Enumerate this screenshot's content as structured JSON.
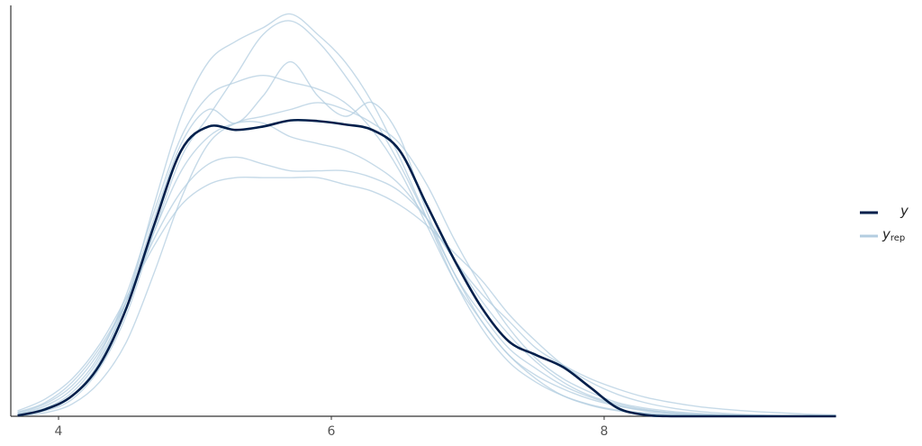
{
  "chart_data": {
    "type": "line",
    "x": [
      3.7,
      3.9,
      4.1,
      4.3,
      4.5,
      4.7,
      4.9,
      5.1,
      5.3,
      5.5,
      5.7,
      5.9,
      6.1,
      6.3,
      6.5,
      6.7,
      6.9,
      7.1,
      7.3,
      7.5,
      7.7,
      7.9,
      8.1,
      8.3,
      8.5,
      8.7,
      8.9,
      9.1,
      9.3,
      9.5,
      9.7
    ],
    "series": [
      {
        "name": "y",
        "color": "#011f4b",
        "values": [
          0.001,
          0.01,
          0.03,
          0.075,
          0.16,
          0.28,
          0.39,
          0.425,
          0.42,
          0.425,
          0.434,
          0.433,
          0.428,
          0.42,
          0.39,
          0.31,
          0.23,
          0.16,
          0.11,
          0.09,
          0.072,
          0.042,
          0.012,
          0.002,
          0,
          0,
          0,
          0,
          0,
          0,
          0
        ]
      },
      {
        "name": "y",
        "subscript": "rep",
        "color": "#b3cde0",
        "draws": [
          [
            0.004,
            0.015,
            0.04,
            0.09,
            0.18,
            0.3,
            0.41,
            0.47,
            0.49,
            0.5,
            0.49,
            0.48,
            0.46,
            0.42,
            0.36,
            0.28,
            0.2,
            0.14,
            0.09,
            0.06,
            0.04,
            0.025,
            0.015,
            0.008,
            0.004,
            0.002,
            0.001,
            0,
            0,
            0,
            0
          ],
          [
            0.006,
            0.02,
            0.05,
            0.1,
            0.17,
            0.26,
            0.33,
            0.37,
            0.38,
            0.37,
            0.36,
            0.36,
            0.36,
            0.35,
            0.33,
            0.29,
            0.23,
            0.17,
            0.12,
            0.08,
            0.05,
            0.03,
            0.018,
            0.01,
            0.005,
            0.003,
            0.002,
            0.001,
            0,
            0,
            0
          ],
          [
            0.002,
            0.008,
            0.025,
            0.07,
            0.15,
            0.27,
            0.38,
            0.44,
            0.5,
            0.56,
            0.58,
            0.55,
            0.5,
            0.44,
            0.37,
            0.29,
            0.21,
            0.14,
            0.09,
            0.055,
            0.03,
            0.016,
            0.008,
            0.004,
            0.002,
            0.001,
            0,
            0,
            0,
            0,
            0
          ],
          [
            0.001,
            0.005,
            0.018,
            0.05,
            0.11,
            0.21,
            0.32,
            0.4,
            0.43,
            0.44,
            0.45,
            0.46,
            0.45,
            0.43,
            0.4,
            0.34,
            0.26,
            0.19,
            0.13,
            0.085,
            0.055,
            0.035,
            0.02,
            0.012,
            0.007,
            0.004,
            0.002,
            0.001,
            0.001,
            0,
            0
          ],
          [
            0.003,
            0.012,
            0.035,
            0.085,
            0.17,
            0.29,
            0.4,
            0.45,
            0.43,
            0.47,
            0.52,
            0.47,
            0.44,
            0.46,
            0.41,
            0.3,
            0.21,
            0.15,
            0.1,
            0.07,
            0.045,
            0.028,
            0.016,
            0.009,
            0.005,
            0.002,
            0.001,
            0,
            0,
            0,
            0
          ],
          [
            0.005,
            0.018,
            0.045,
            0.095,
            0.17,
            0.27,
            0.36,
            0.41,
            0.43,
            0.43,
            0.41,
            0.4,
            0.39,
            0.37,
            0.34,
            0.29,
            0.23,
            0.18,
            0.14,
            0.1,
            0.075,
            0.055,
            0.04,
            0.028,
            0.02,
            0.014,
            0.01,
            0.007,
            0.005,
            0.003,
            0.002
          ],
          [
            0.002,
            0.01,
            0.03,
            0.08,
            0.17,
            0.31,
            0.44,
            0.52,
            0.55,
            0.57,
            0.59,
            0.56,
            0.52,
            0.46,
            0.38,
            0.29,
            0.2,
            0.13,
            0.08,
            0.05,
            0.03,
            0.017,
            0.009,
            0.005,
            0.002,
            0.001,
            0,
            0,
            0,
            0,
            0
          ],
          [
            0.008,
            0.025,
            0.055,
            0.105,
            0.175,
            0.25,
            0.31,
            0.34,
            0.35,
            0.35,
            0.35,
            0.35,
            0.34,
            0.33,
            0.31,
            0.28,
            0.24,
            0.2,
            0.15,
            0.11,
            0.075,
            0.05,
            0.032,
            0.02,
            0.012,
            0.007,
            0.004,
            0.002,
            0.001,
            0.001,
            0
          ]
        ]
      }
    ],
    "xlim": [
      3.65,
      9.69
    ],
    "xticks": [
      4,
      6,
      8
    ],
    "ylim": [
      0,
      0.6
    ],
    "legend": "right"
  }
}
